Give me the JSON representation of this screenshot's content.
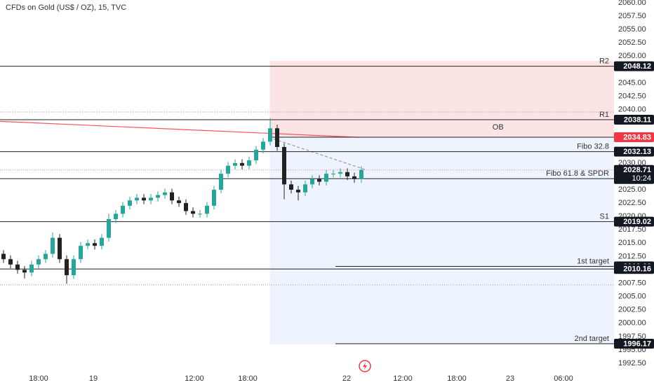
{
  "chart_data": {
    "type": "candlestick",
    "title": "CFDs on Gold (US$ / OZ), 15, TVC",
    "up_color": "#26a69a",
    "down_color": "#222222",
    "xlim": [
      -0.5,
      87
    ],
    "ylim": [
      1991.06,
      2060.52
    ],
    "xticks": [
      {
        "value": 5,
        "label": "18:00"
      },
      {
        "value": 12.8,
        "label": "19"
      },
      {
        "value": 27.2,
        "label": "12:00"
      },
      {
        "value": 34.8,
        "label": "18:00"
      },
      {
        "value": 48.9,
        "label": "22"
      },
      {
        "value": 56.9,
        "label": "12:00"
      },
      {
        "value": 64.6,
        "label": "18:00"
      },
      {
        "value": 72.2,
        "label": "23"
      },
      {
        "value": 79.8,
        "label": "06:00"
      }
    ],
    "yticks": [
      {
        "value": 2060,
        "label": "2060.00"
      },
      {
        "value": 2057.5,
        "label": "2057.50"
      },
      {
        "value": 2055,
        "label": "2055.00"
      },
      {
        "value": 2052.5,
        "label": "2052.50"
      },
      {
        "value": 2050,
        "label": "2050.00"
      },
      {
        "value": 2045,
        "label": "2045.00"
      },
      {
        "value": 2042.5,
        "label": "2042.50"
      },
      {
        "value": 2040,
        "label": "2040.00"
      },
      {
        "value": 2030,
        "label": "2030.00"
      },
      {
        "value": 2025,
        "label": "2025.00"
      },
      {
        "value": 2022.5,
        "label": "2022.50"
      },
      {
        "value": 2020,
        "label": "2020.00"
      },
      {
        "value": 2017.5,
        "label": "2017.50"
      },
      {
        "value": 2015,
        "label": "2015.00"
      },
      {
        "value": 2012.5,
        "label": "2012.50"
      },
      {
        "value": 2007.5,
        "label": "2007.50"
      },
      {
        "value": 2005,
        "label": "2005.00"
      },
      {
        "value": 2002.5,
        "label": "2002.50"
      },
      {
        "value": 2000,
        "label": "2000.00"
      },
      {
        "value": 1997.5,
        "label": "1997.50"
      },
      {
        "value": 1995,
        "label": "1995.00"
      },
      {
        "value": 1992.5,
        "label": "1992.50"
      }
    ],
    "open": [
      2013,
      2012,
      2011,
      2010,
      2009.5,
      2011,
      2012,
      2013,
      2016,
      2012,
      2009,
      2012,
      2014.5,
      2015,
      2014.5,
      2016,
      2019.5,
      2020.5,
      2022,
      2023,
      2023.5,
      2023,
      2023.5,
      2024,
      2024.5,
      2023,
      2022.5,
      2021,
      2020.5,
      2020.5,
      2022,
      2025,
      2028,
      2029.5,
      2030,
      2029.5,
      2030.5,
      2032.5,
      2034,
      2036.5,
      2033,
      2026,
      2025,
      2024.5,
      2026,
      2027,
      2026.5,
      2028,
      2028,
      2028.3,
      2027.5,
      2027
    ],
    "high": [
      2013.7,
      2012.7,
      2011.7,
      2010.7,
      2011.7,
      2012.7,
      2013.7,
      2017,
      2016.7,
      2012.7,
      2012.7,
      2015.2,
      2015.7,
      2015.7,
      2016.7,
      2020.5,
      2021.2,
      2022.7,
      2023.7,
      2024.2,
      2024.2,
      2024.2,
      2024.7,
      2025.2,
      2025.2,
      2023.7,
      2023.2,
      2021.7,
      2021.2,
      2022.7,
      2025.7,
      2028.7,
      2030.2,
      2030.7,
      2030.7,
      2031.2,
      2033.2,
      2034.7,
      2038.4,
      2037.2,
      2033.7,
      2026.7,
      2025.7,
      2026.7,
      2027.7,
      2027.7,
      2028.7,
      2028.7,
      2029,
      2029,
      2028.2,
      2029.4
    ],
    "low": [
      2011.3,
      2010.3,
      2009.3,
      2008.4,
      2008.8,
      2010.3,
      2011.3,
      2012.3,
      2011.3,
      2007.4,
      2008.3,
      2011.3,
      2013.8,
      2013.8,
      2013.8,
      2015.3,
      2018.8,
      2019.8,
      2021.3,
      2022.3,
      2022.3,
      2022.3,
      2022.8,
      2023.3,
      2022.3,
      2021.8,
      2020.3,
      2019.8,
      2019.8,
      2019.8,
      2021.3,
      2024.3,
      2027.3,
      2028.8,
      2028.8,
      2028.8,
      2029.8,
      2031.8,
      2033.3,
      2032.3,
      2023.2,
      2024.3,
      2023,
      2023.8,
      2025.3,
      2025.8,
      2025.8,
      2027.3,
      2027.3,
      2026.8,
      2026.3,
      2026.3
    ],
    "close": [
      2012,
      2011,
      2010,
      2009.5,
      2011,
      2012,
      2013,
      2016,
      2012,
      2009,
      2012,
      2014.5,
      2015,
      2014.5,
      2016,
      2019.5,
      2020.5,
      2022,
      2023,
      2023.5,
      2023,
      2023.5,
      2024,
      2024.5,
      2023,
      2022.5,
      2021,
      2020.5,
      2020.5,
      2022,
      2025,
      2028,
      2029.5,
      2030,
      2029.5,
      2030.5,
      2032.5,
      2034,
      2036.5,
      2033,
      2026,
      2025,
      2024.5,
      2026,
      2027,
      2026.5,
      2028,
      2028,
      2028.3,
      2027.5,
      2027,
      2028.71
    ],
    "zones": [
      {
        "x_start": 37.95,
        "top": 2049.1,
        "bottom": 2034.83,
        "color": "#fce4e4"
      },
      {
        "x_start": 37.95,
        "top": 2034.83,
        "bottom": 1996.04,
        "color": "#eef4fd"
      }
    ],
    "levels": [
      {
        "name": "R2",
        "value": 2048.12,
        "style": "line"
      },
      {
        "name": "R1",
        "value": 2038.11,
        "style": "line"
      },
      {
        "name": "OB",
        "value": 2034.83,
        "style": "zone-edge",
        "color": "#f23645"
      },
      {
        "name": "Fibo 32.8",
        "value": 2032.13,
        "style": "line"
      },
      {
        "name": "Fibo 61.8 & SPDR",
        "value": 2027.07,
        "style": "line"
      },
      {
        "name": "S1",
        "value": 2019.02,
        "style": "line"
      },
      {
        "name": "1st target",
        "value": 2010.66,
        "style": "target"
      },
      {
        "value": 2010.16,
        "style": "line"
      },
      {
        "name": "2nd target",
        "value": 1996.17,
        "style": "target"
      }
    ],
    "dotted_levels": [
      2039.55,
      2007.2
    ],
    "moving_average": {
      "color": "#f7525f",
      "x": [
        -0.5,
        50.7
      ],
      "values": [
        2037.8,
        2034.8
      ]
    },
    "trendline": {
      "x": [
        38.5,
        51.5
      ],
      "values": [
        2034.5,
        2028.8
      ]
    },
    "current_price": {
      "value": 2028.71,
      "time": "10:24",
      "color": "#e07fb0"
    }
  }
}
